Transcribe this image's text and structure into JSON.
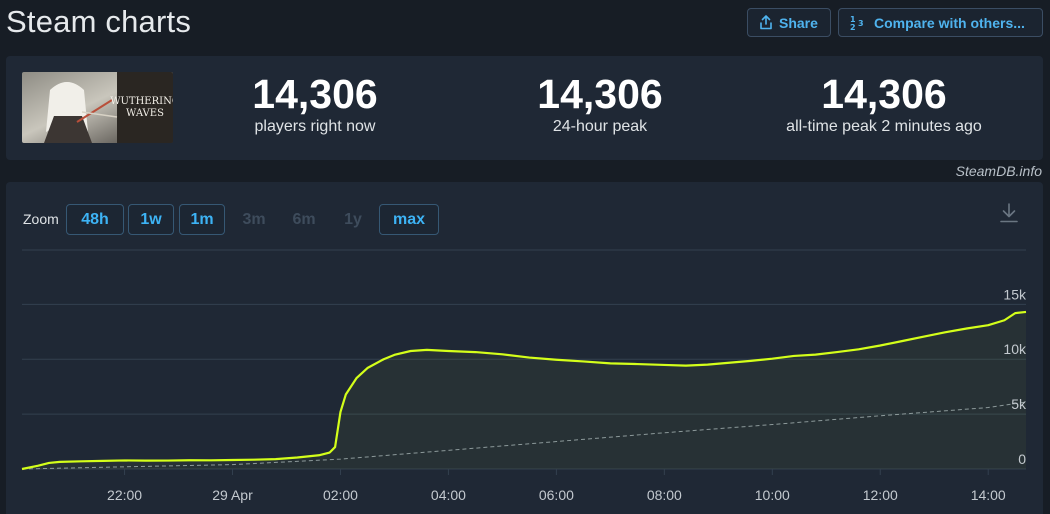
{
  "header": {
    "title": "Steam charts",
    "share_label": "Share",
    "compare_label": "Compare with others..."
  },
  "game": {
    "logo_text_line1": "WUTHERING",
    "logo_text_line2": "WAVES"
  },
  "stats": {
    "now_value": "14,306",
    "now_label": "players right now",
    "peak24_value": "14,306",
    "peak24_label": "24-hour peak",
    "alltime_value": "14,306",
    "alltime_label": "all-time peak 2 minutes ago"
  },
  "watermark": "SteamDB.info",
  "zoom": {
    "label": "Zoom",
    "options": [
      {
        "label": "48h",
        "enabled": true
      },
      {
        "label": "1w",
        "enabled": true
      },
      {
        "label": "1m",
        "enabled": true
      },
      {
        "label": "3m",
        "enabled": false
      },
      {
        "label": "6m",
        "enabled": false
      },
      {
        "label": "1y",
        "enabled": false
      },
      {
        "label": "max",
        "enabled": true
      }
    ]
  },
  "colors": {
    "line": "#d4ff1a",
    "avg_line": "#8a95a0",
    "grid": "#33404f",
    "tick_text": "#c3c9cf",
    "accent": "#3db3f5"
  },
  "chart_data": {
    "type": "line",
    "y_ticks": [
      "0",
      "5k",
      "10k",
      "15k"
    ],
    "x_ticks": [
      "22:00",
      "29 Apr",
      "02:00",
      "04:00",
      "06:00",
      "08:00",
      "10:00",
      "12:00",
      "14:00"
    ],
    "x_ticks_hours": [
      22,
      24,
      26,
      28,
      30,
      32,
      34,
      36,
      38
    ],
    "xlim_hours": [
      20.1,
      38.7
    ],
    "ylim": [
      0,
      15000
    ],
    "grid": true,
    "series": [
      {
        "role": "players",
        "points": [
          [
            20.1,
            0
          ],
          [
            20.4,
            300
          ],
          [
            20.6,
            550
          ],
          [
            20.8,
            650
          ],
          [
            21.2,
            700
          ],
          [
            21.6,
            740
          ],
          [
            22.0,
            780
          ],
          [
            22.4,
            760
          ],
          [
            22.8,
            770
          ],
          [
            23.2,
            800
          ],
          [
            23.6,
            790
          ],
          [
            24.0,
            820
          ],
          [
            24.4,
            850
          ],
          [
            24.8,
            900
          ],
          [
            25.2,
            1050
          ],
          [
            25.6,
            1250
          ],
          [
            25.8,
            1500
          ],
          [
            25.9,
            2000
          ],
          [
            26.0,
            5200
          ],
          [
            26.1,
            6800
          ],
          [
            26.3,
            8300
          ],
          [
            26.5,
            9200
          ],
          [
            26.8,
            10000
          ],
          [
            27.0,
            10400
          ],
          [
            27.3,
            10750
          ],
          [
            27.6,
            10850
          ],
          [
            28.0,
            10750
          ],
          [
            28.5,
            10650
          ],
          [
            29.0,
            10450
          ],
          [
            29.5,
            10150
          ],
          [
            30.0,
            9950
          ],
          [
            30.5,
            9800
          ],
          [
            31.0,
            9620
          ],
          [
            31.5,
            9560
          ],
          [
            32.0,
            9480
          ],
          [
            32.4,
            9420
          ],
          [
            32.8,
            9510
          ],
          [
            33.2,
            9680
          ],
          [
            33.6,
            9850
          ],
          [
            34.0,
            10050
          ],
          [
            34.4,
            10300
          ],
          [
            34.8,
            10420
          ],
          [
            35.2,
            10650
          ],
          [
            35.6,
            10900
          ],
          [
            36.0,
            11250
          ],
          [
            36.4,
            11650
          ],
          [
            36.8,
            12050
          ],
          [
            37.2,
            12450
          ],
          [
            37.6,
            12800
          ],
          [
            38.0,
            13100
          ],
          [
            38.3,
            13550
          ],
          [
            38.5,
            14200
          ],
          [
            38.7,
            14306
          ]
        ]
      },
      {
        "role": "average",
        "points": [
          [
            20.1,
            0
          ],
          [
            22.0,
            200
          ],
          [
            24.0,
            400
          ],
          [
            26.0,
            900
          ],
          [
            28.0,
            1700
          ],
          [
            30.0,
            2500
          ],
          [
            32.0,
            3300
          ],
          [
            34.0,
            4050
          ],
          [
            36.0,
            4850
          ],
          [
            38.0,
            5600
          ],
          [
            38.7,
            6100
          ]
        ]
      }
    ]
  }
}
